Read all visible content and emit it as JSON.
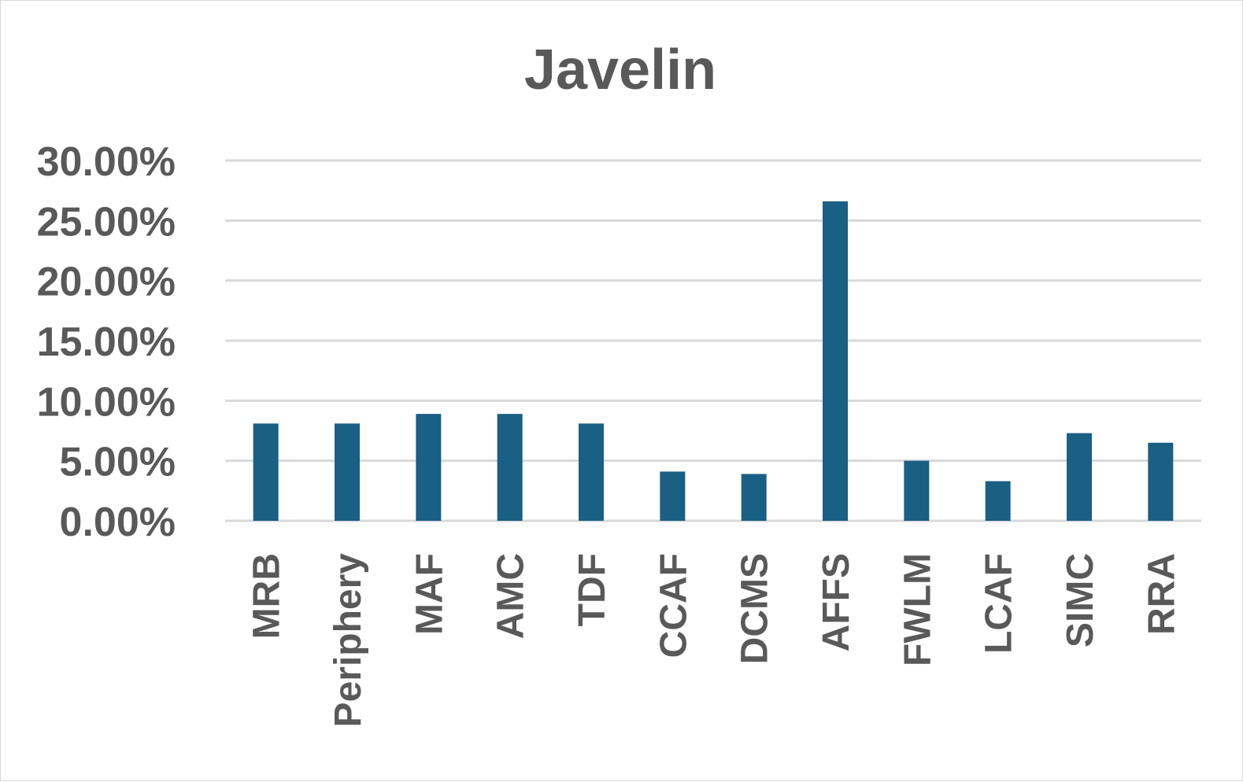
{
  "chart_data": {
    "type": "bar",
    "title": "Javelin",
    "xlabel": "",
    "ylabel": "",
    "categories": [
      "MRB",
      "Periphery",
      "MAF",
      "AMC",
      "TDF",
      "CCAF",
      "DCMS",
      "AFFS",
      "FWLM",
      "LCAF",
      "SIMC",
      "RRA"
    ],
    "values": [
      8.1,
      8.1,
      8.9,
      8.9,
      8.1,
      4.1,
      3.9,
      26.6,
      5.0,
      3.3,
      7.3,
      6.5
    ],
    "ylim": [
      0,
      30
    ],
    "yticks": [
      "0.00%",
      "5.00%",
      "10.00%",
      "15.00%",
      "20.00%",
      "25.00%",
      "30.00%"
    ],
    "grid": true,
    "legend": "none",
    "bar_color": "#1a5f84"
  }
}
